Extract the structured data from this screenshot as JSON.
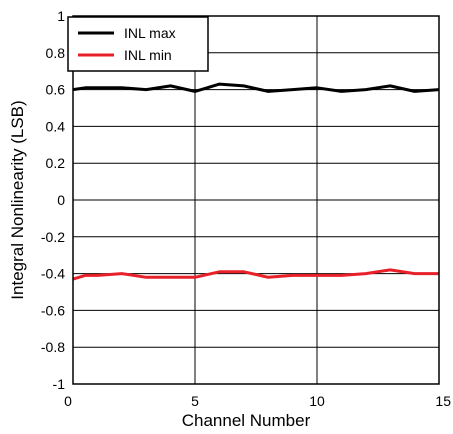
{
  "chart_data": {
    "type": "line",
    "xlabel": "Channel Number",
    "ylabel": "Integral Nonlinearity (LSB)",
    "xlim": [
      0,
      15
    ],
    "ylim": [
      -1,
      1
    ],
    "x_ticks": [
      0,
      5,
      10,
      15
    ],
    "y_ticks": [
      1,
      0.8,
      0.6,
      0.4,
      0.2,
      0,
      -0.2,
      -0.4,
      -0.6,
      -0.8,
      -1
    ],
    "x_tick_labels": [
      "0",
      "5",
      "10",
      "15"
    ],
    "y_tick_labels": [
      "1",
      "0.8",
      "0.6",
      "0.4",
      "0.2",
      "0",
      "-0.2",
      "-0.4",
      "-0.6",
      "-0.8",
      "-1"
    ],
    "grid": true,
    "legend_position": "top-left",
    "series": [
      {
        "name": "INL max",
        "color": "#000000",
        "x": [
          0,
          0.5,
          1,
          2,
          3,
          4,
          5,
          5.5,
          6,
          7,
          8,
          9,
          10,
          11,
          12,
          13,
          14,
          15
        ],
        "values": [
          0.6,
          0.61,
          0.61,
          0.61,
          0.6,
          0.62,
          0.59,
          0.61,
          0.63,
          0.62,
          0.59,
          0.6,
          0.61,
          0.59,
          0.6,
          0.62,
          0.59,
          0.6
        ]
      },
      {
        "name": "INL min",
        "color": "#e8202a",
        "x": [
          0,
          0.5,
          1,
          2,
          3,
          4,
          5,
          6,
          7,
          8,
          9,
          10,
          11,
          12,
          13,
          14,
          15
        ],
        "values": [
          -0.43,
          -0.41,
          -0.41,
          -0.4,
          -0.42,
          -0.42,
          -0.42,
          -0.39,
          -0.39,
          -0.42,
          -0.41,
          -0.41,
          -0.41,
          -0.4,
          -0.38,
          -0.4,
          -0.4
        ]
      }
    ]
  }
}
